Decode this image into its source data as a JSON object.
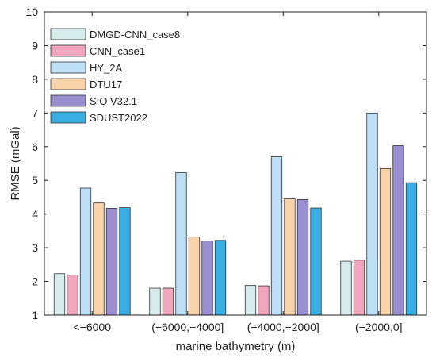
{
  "chart_data": {
    "type": "bar",
    "title": "",
    "xlabel": "marine bathymetry (m)",
    "ylabel": "RMSE (mGal)",
    "ylim": [
      1,
      10
    ],
    "yticks": [
      "1",
      "2",
      "3",
      "4",
      "5",
      "6",
      "7",
      "8",
      "9",
      "10"
    ],
    "categories": [
      "<−6000",
      "(−6000,−4000]",
      "(−4000,−2000]",
      "(−2000,0]"
    ],
    "legend_position": "top-left",
    "series": [
      {
        "name": "DMGD-CNN_case8",
        "color": "#d6ecec",
        "values": [
          2.23,
          1.8,
          1.88,
          2.6
        ]
      },
      {
        "name": "CNN_case1",
        "color": "#f2a6bd",
        "values": [
          2.19,
          1.8,
          1.87,
          2.63
        ]
      },
      {
        "name": "HY_2A",
        "color": "#bcdff5",
        "values": [
          4.77,
          5.23,
          5.7,
          7.0
        ]
      },
      {
        "name": "DTU17",
        "color": "#fad3ab",
        "values": [
          4.33,
          3.32,
          4.45,
          5.35
        ]
      },
      {
        "name": "SIO V32.1",
        "color": "#9b8ed0",
        "values": [
          4.17,
          3.2,
          4.43,
          6.03
        ]
      },
      {
        "name": "SDUST2022",
        "color": "#3aaee3",
        "values": [
          4.19,
          3.22,
          4.18,
          4.93
        ]
      }
    ]
  }
}
